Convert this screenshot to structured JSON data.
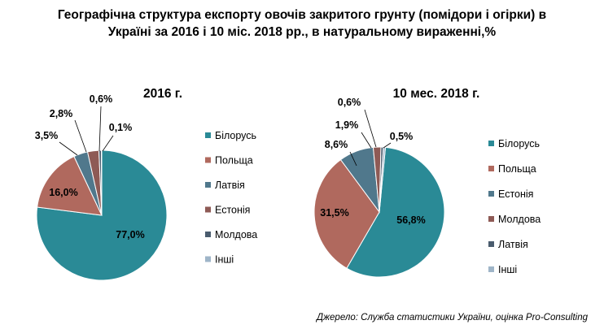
{
  "title": {
    "line1": "Географічна структура експорту овочів закритого грунту (помідори і огірки) в",
    "line2": "Україні за 2016 і 10 міс. 2018 рр., в натуральному вираженні,%"
  },
  "source": "Джерело: Служба статистики України, оцінка Pro-Consulting",
  "chart_data": [
    {
      "type": "pie",
      "title": "2016 г.",
      "categories": [
        "Білорусь",
        "Польща",
        "Латвія",
        "Естонія",
        "Молдова",
        "Інші"
      ],
      "values": [
        77.0,
        16.0,
        3.5,
        2.8,
        0.6,
        0.1
      ],
      "labels": [
        "77,0%",
        "16,0%",
        "3,5%",
        "2,8%",
        "0,6%",
        "0,1%"
      ],
      "colors": [
        "#2a8a96",
        "#b0695e",
        "#50788c",
        "#8e5a55",
        "#4a5c6e",
        "#9fb5c8"
      ],
      "legend_position": "right"
    },
    {
      "type": "pie",
      "title": "10 мес. 2018 г.",
      "categories": [
        "Білорусь",
        "Польща",
        "Естонія",
        "Молдова",
        "Латвія",
        "Інші"
      ],
      "values": [
        56.8,
        31.5,
        8.6,
        1.9,
        0.6,
        0.5
      ],
      "labels": [
        "56,8%",
        "31,5%",
        "8,6%",
        "1,9%",
        "0,6%",
        "0,5%"
      ],
      "colors": [
        "#2a8a96",
        "#b0695e",
        "#50788c",
        "#8e5a55",
        "#4a5c6e",
        "#9fb5c8"
      ],
      "legend_position": "right"
    }
  ]
}
